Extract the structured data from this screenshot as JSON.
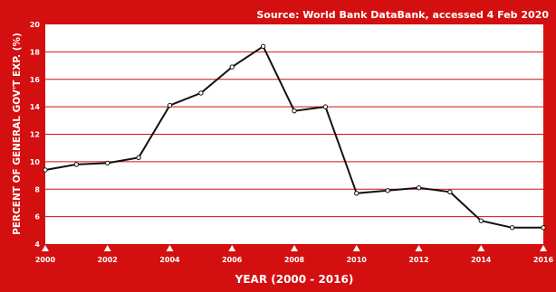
{
  "source_note": "Source: World Bank DataBank, accessed 4 Feb 2020",
  "chart_data": {
    "type": "line",
    "xlabel": "YEAR (2000 - 2016)",
    "ylabel": "PERCENT OF GENERAL GOV'T EXP. (%)",
    "xlim": [
      2000,
      2016
    ],
    "ylim": [
      4,
      20
    ],
    "x_ticks": [
      2000,
      2002,
      2004,
      2006,
      2008,
      2010,
      2012,
      2014,
      2016
    ],
    "y_ticks": [
      4,
      6,
      8,
      10,
      12,
      14,
      16,
      18,
      20
    ],
    "grid": true,
    "colors": {
      "background": "#d40f0f",
      "plot_area": "#ffffff",
      "gridline": "#d40f0f",
      "line": "#111111",
      "text": "#ffffff"
    },
    "series": [
      {
        "x": [
          2000,
          2001,
          2002,
          2003,
          2004,
          2005,
          2006,
          2007,
          2008,
          2009,
          2010,
          2011,
          2012,
          2013,
          2014,
          2015,
          2016
        ],
        "values": [
          9.4,
          9.8,
          9.9,
          10.3,
          14.1,
          15.0,
          16.9,
          18.4,
          13.7,
          14.0,
          7.7,
          7.9,
          8.1,
          7.8,
          5.7,
          5.2,
          5.2
        ]
      }
    ]
  }
}
